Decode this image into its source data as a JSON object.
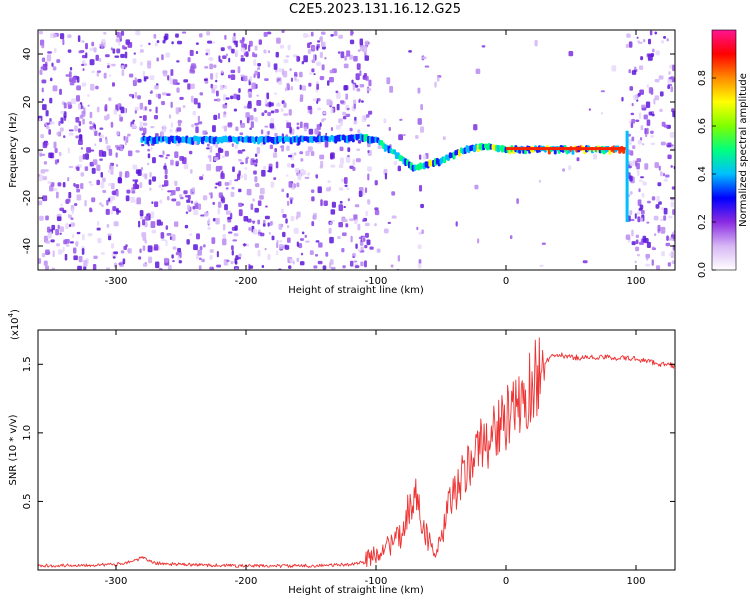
{
  "title": "C2E5.2023.131.16.12.G25",
  "chart_data": [
    {
      "type": "heatmap",
      "xlabel": "Height of straight line (km)",
      "ylabel": "Frequency (Hz)",
      "xlim": [
        -360,
        130
      ],
      "ylim": [
        -50,
        50
      ],
      "xticks": [
        -300,
        -200,
        -100,
        0,
        100
      ],
      "yticks": [
        -40,
        -20,
        0,
        20,
        40
      ],
      "colorbar": {
        "label": "Normalized spectral amplitude",
        "range": [
          0,
          1
        ],
        "ticks": [
          0.0,
          0.2,
          0.4,
          0.6,
          0.8
        ],
        "colors": [
          "#ffffff",
          "#d7b7f5",
          "#8a2be2",
          "#0000ff",
          "#00bfff",
          "#00ff7f",
          "#7fff00",
          "#ffff00",
          "#ff8c00",
          "#ff0000",
          "#ff1493"
        ]
      },
      "signal_track": [
        {
          "x": -280,
          "y": 4
        },
        {
          "x": -250,
          "y": 4
        },
        {
          "x": -220,
          "y": 4
        },
        {
          "x": -180,
          "y": 4
        },
        {
          "x": -140,
          "y": 4
        },
        {
          "x": -110,
          "y": 5
        },
        {
          "x": -100,
          "y": 4
        },
        {
          "x": -90,
          "y": 0
        },
        {
          "x": -80,
          "y": -4
        },
        {
          "x": -70,
          "y": -8
        },
        {
          "x": -60,
          "y": -6
        },
        {
          "x": -50,
          "y": -5
        },
        {
          "x": -40,
          "y": -2
        },
        {
          "x": -30,
          "y": 0
        },
        {
          "x": -20,
          "y": 1
        },
        {
          "x": -10,
          "y": 1
        },
        {
          "x": 0,
          "y": 0
        },
        {
          "x": 50,
          "y": 0
        },
        {
          "x": 92,
          "y": 0
        }
      ]
    },
    {
      "type": "line",
      "xlabel": "Height of straight line (km)",
      "ylabel": "SNR (10 * v/v)",
      "yscale_label": "(x10",
      "yscale_exp": "4",
      "xlim": [
        -360,
        130
      ],
      "ylim": [
        0,
        1.75
      ],
      "xticks": [
        -300,
        -200,
        -100,
        0,
        100
      ],
      "yticks": [
        0.5,
        1.0,
        1.5
      ],
      "color": "#ee3333",
      "series": [
        {
          "x": [
            -360,
            -300,
            -285,
            -280,
            -270,
            -250,
            -200,
            -150,
            -120,
            -110,
            -100,
            -90,
            -80,
            -75,
            -70,
            -65,
            -60,
            -55,
            -50,
            -45,
            -40,
            -35,
            -30,
            -25,
            -20,
            -15,
            -10,
            -5,
            0,
            5,
            10,
            15,
            20,
            25,
            30,
            35,
            40,
            50,
            60,
            80,
            100,
            110,
            120,
            130
          ],
          "y": [
            0.03,
            0.04,
            0.07,
            0.09,
            0.05,
            0.04,
            0.03,
            0.03,
            0.04,
            0.06,
            0.12,
            0.18,
            0.25,
            0.45,
            0.55,
            0.38,
            0.22,
            0.12,
            0.18,
            0.45,
            0.55,
            0.65,
            0.72,
            0.85,
            0.9,
            0.95,
            1.0,
            1.05,
            1.1,
            1.12,
            1.2,
            1.25,
            1.35,
            1.45,
            1.52,
            1.55,
            1.57,
            1.55,
            1.55,
            1.55,
            1.54,
            1.52,
            1.5,
            1.49
          ]
        }
      ]
    }
  ]
}
